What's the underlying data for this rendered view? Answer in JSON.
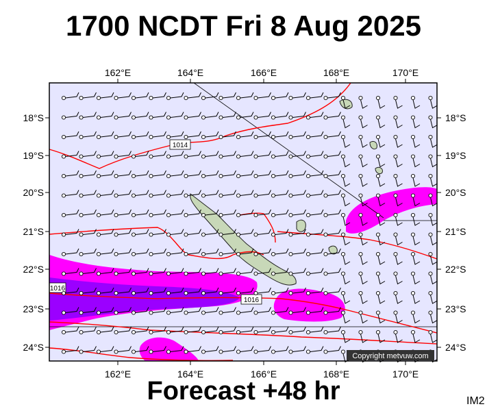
{
  "header": {
    "title": "1700 NCDT Fri 8 Aug 2025"
  },
  "footer": {
    "forecast": "Forecast +48 hr",
    "tag": "IM2"
  },
  "map": {
    "lon_labels": [
      "162°E",
      "164°E",
      "166°E",
      "168°E",
      "170°E"
    ],
    "lat_labels": [
      "18°S",
      "19°S",
      "20°S",
      "21°S",
      "22°S",
      "23°S",
      "24°S"
    ],
    "isobar_labels": [
      "1014",
      "1016",
      "1016"
    ],
    "copyright": "Copyright metvuw.com",
    "colors": {
      "background": "#e6e6ff",
      "isobar": "#ff0000",
      "rain_light": "#ff00ff",
      "rain_heavy": "#9b00ff",
      "land": "#c8d8b8"
    }
  }
}
